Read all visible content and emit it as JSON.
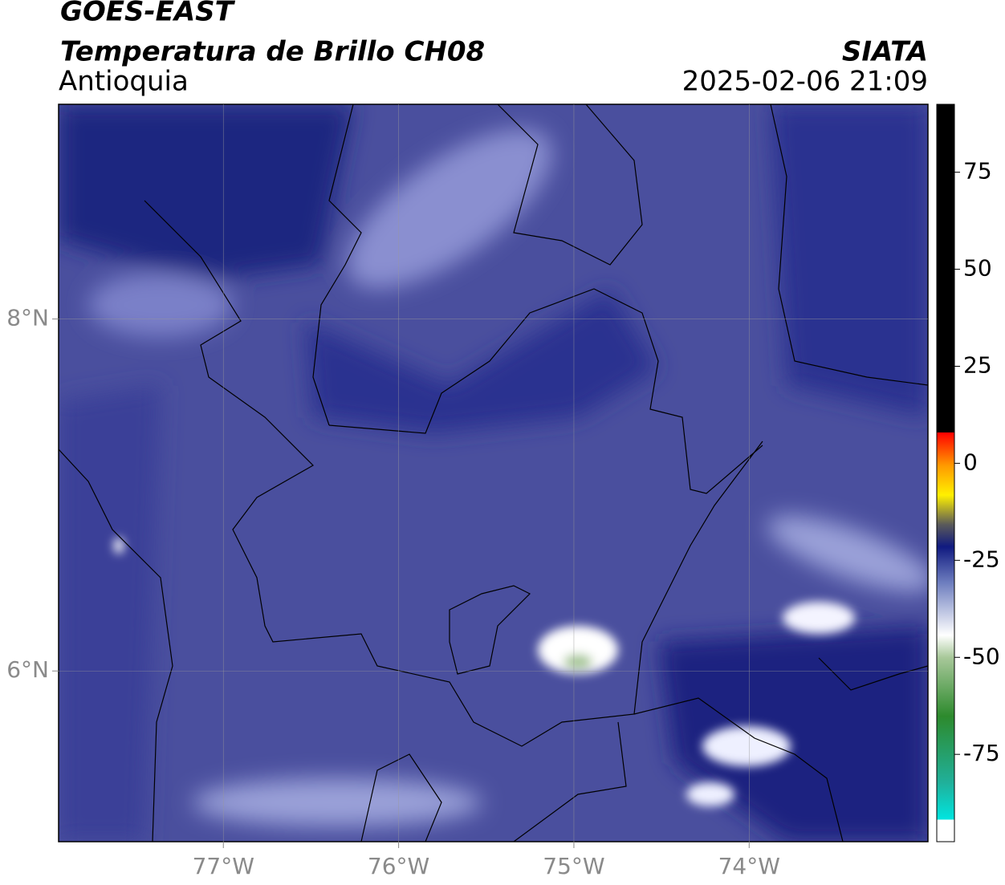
{
  "header": {
    "title": "GOES-EAST",
    "subtitle": "Temperatura de Brillo CH08",
    "region": "Antioquia",
    "agency": "SIATA",
    "datetime": "2025-02-06 21:09"
  },
  "map": {
    "lonlim": [
      -77.94,
      -72.98
    ],
    "latlim": [
      5.03,
      9.22
    ],
    "lonticks": [
      {
        "value": -77,
        "label": "77°W"
      },
      {
        "value": -76,
        "label": "76°W"
      },
      {
        "value": -75,
        "label": "75°W"
      },
      {
        "value": -74,
        "label": "74°W"
      }
    ],
    "latticks": [
      {
        "value": 8,
        "label": "8°N"
      },
      {
        "value": 6,
        "label": "6°N"
      }
    ]
  },
  "colorbar": {
    "lim": [
      -97.5,
      92.5
    ],
    "ticks": [
      75,
      50,
      25,
      0,
      -25,
      -50,
      -75
    ]
  }
}
